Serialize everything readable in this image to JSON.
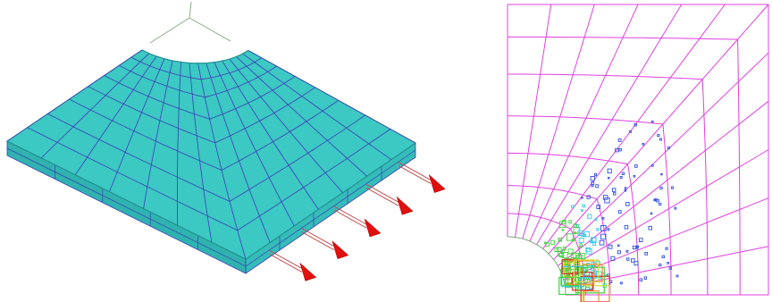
{
  "figure": {
    "left_view": {
      "description_type": "isometric finite-element mesh of quarter plate with hole under tension",
      "colors": {
        "plate_fill": "#3cc8c3",
        "plate_edge": "#1f8f8c",
        "mesh_line": "#3b3fb8",
        "axis_line": "#88aa88",
        "arrow_shaft": "#c05050",
        "arrow_head": "#e01010"
      },
      "arrow_count": 5
    },
    "right_view": {
      "description_type": "2D quarter-plate mesh with hole and adaptive refinement indicators",
      "colors": {
        "mesh_line": "#e040e0",
        "boundary": "#77aa77",
        "refine_blue": "#3050e0",
        "refine_cyan": "#30c8e8",
        "refine_green": "#40d040",
        "refine_orange": "#ff8c20",
        "refine_red": "#e03020"
      }
    }
  }
}
